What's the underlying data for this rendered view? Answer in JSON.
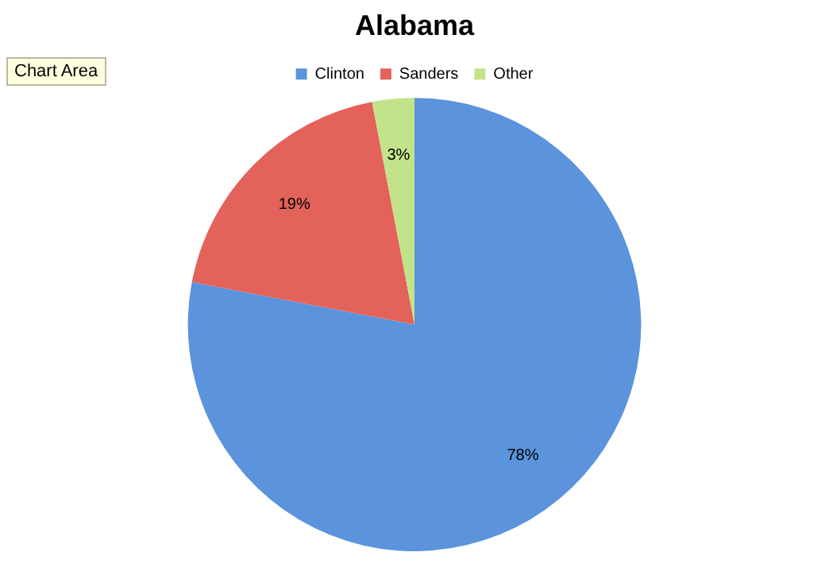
{
  "chart_data": {
    "type": "pie",
    "title": "Alabama",
    "categories": [
      "Clinton",
      "Sanders",
      "Other"
    ],
    "values": [
      78,
      19,
      3
    ],
    "colors": [
      "#5b93dc",
      "#e3625a",
      "#c3e38a"
    ],
    "value_labels": [
      "78%",
      "19%",
      "3%"
    ],
    "legend": "top",
    "annotations": [
      "Chart Area"
    ]
  }
}
